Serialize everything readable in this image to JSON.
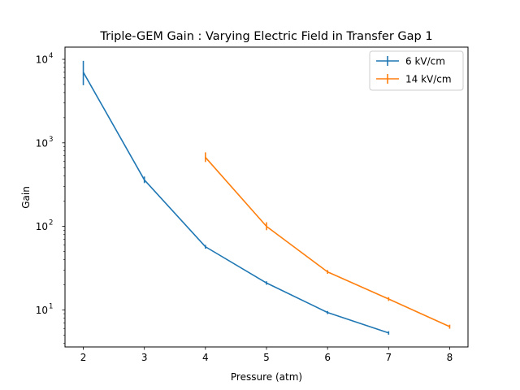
{
  "chart_data": {
    "type": "line",
    "title": "Triple-GEM Gain : Varying Electric Field in Transfer Gap 1",
    "xlabel": "Pressure (atm)",
    "ylabel": "Gain",
    "yscale": "log",
    "xlim": [
      1.7,
      8.3
    ],
    "ylim": [
      3.6,
      14000
    ],
    "x_ticks": [
      2,
      3,
      4,
      5,
      6,
      7,
      8
    ],
    "y_ticks": [
      {
        "base": "10",
        "exp": "1",
        "value": 10
      },
      {
        "base": "10",
        "exp": "2",
        "value": 100
      },
      {
        "base": "10",
        "exp": "3",
        "value": 1000
      },
      {
        "base": "10",
        "exp": "4",
        "value": 10000
      }
    ],
    "grid": false,
    "legend_position": "top-right",
    "series": [
      {
        "name": "6 kV/cm",
        "color": "#1f77b4",
        "x": [
          2,
          3,
          4,
          5,
          6,
          7
        ],
        "y": [
          7000,
          360,
          57,
          21,
          9.3,
          5.3
        ],
        "yerr_low": [
          4900,
          330,
          54,
          20,
          8.9,
          5.05
        ],
        "yerr_high": [
          9600,
          395,
          60,
          22,
          9.7,
          5.55
        ]
      },
      {
        "name": "14 kV/cm",
        "color": "#ff7f0e",
        "x": [
          4,
          5,
          6,
          7,
          8
        ],
        "y": [
          670,
          100,
          28.5,
          13.5,
          6.3
        ],
        "yerr_low": [
          590,
          90,
          27,
          12.8,
          5.95
        ],
        "yerr_high": [
          770,
          112,
          30,
          14.2,
          6.65
        ]
      }
    ]
  }
}
